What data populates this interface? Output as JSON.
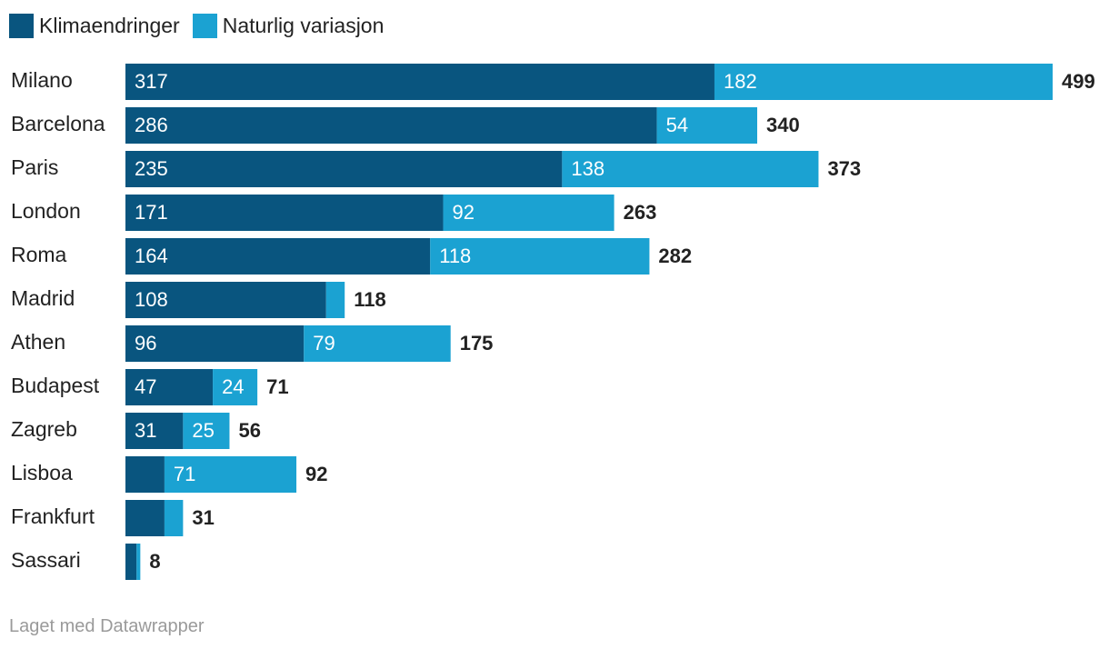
{
  "legend": {
    "items": [
      {
        "label": "Klimaendringer",
        "color": "#09557f"
      },
      {
        "label": "Naturlig variasjon",
        "color": "#1ba2d2"
      }
    ]
  },
  "footer": {
    "credit": "Laget med Datawrapper"
  },
  "chart_data": {
    "type": "bar",
    "orientation": "horizontal",
    "stacked": true,
    "title": "",
    "xlabel": "",
    "ylabel": "",
    "xlim": [
      0,
      499
    ],
    "grid": false,
    "legend_position": "top-left",
    "categories": [
      "Milano",
      "Barcelona",
      "Paris",
      "London",
      "Roma",
      "Madrid",
      "Athen",
      "Budapest",
      "Zagreb",
      "Lisboa",
      "Frankfurt",
      "Sassari"
    ],
    "series": [
      {
        "name": "Klimaendringer",
        "color": "#09557f",
        "values": [
          317,
          286,
          235,
          171,
          164,
          108,
          96,
          47,
          31,
          21,
          21,
          6
        ],
        "labels": [
          "317",
          "286",
          "235",
          "171",
          "164",
          "108",
          "96",
          "47",
          "31",
          "",
          "",
          ""
        ]
      },
      {
        "name": "Naturlig variasjon",
        "color": "#1ba2d2",
        "values": [
          182,
          54,
          138,
          92,
          118,
          10,
          79,
          24,
          25,
          71,
          10,
          2
        ],
        "labels": [
          "182",
          "54",
          "138",
          "92",
          "118",
          "",
          "79",
          "24",
          "25",
          "71",
          "",
          ""
        ]
      }
    ],
    "totals": [
      "499",
      "340",
      "373",
      "263",
      "282",
      "118",
      "175",
      "71",
      "56",
      "92",
      "31",
      "8"
    ]
  }
}
